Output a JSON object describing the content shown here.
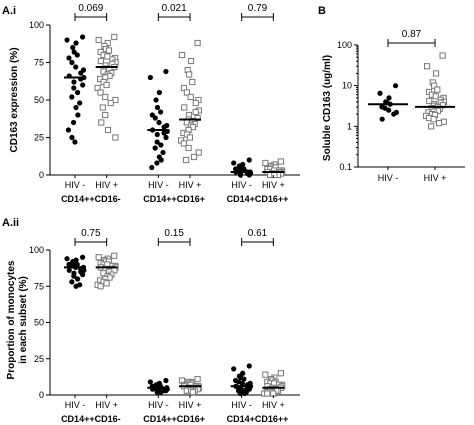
{
  "chart_data": [
    {
      "panel": "A.i",
      "type": "scatter",
      "ylabel": "CD163 expression (%)",
      "ylim": [
        0,
        100
      ],
      "yticks": [
        "0",
        "25",
        "50",
        "75",
        "100"
      ],
      "yticks_values": [
        0,
        25,
        50,
        75,
        100
      ],
      "groups": [
        {
          "name": "CD14++CD16-",
          "pvalue": "0.069",
          "categories": [
            {
              "label": "HIV -",
              "median": 65,
              "values": [
                92,
                90,
                88,
                85,
                82,
                80,
                78,
                75,
                72,
                70,
                68,
                66,
                65,
                64,
                62,
                60,
                58,
                55,
                52,
                48,
                45,
                40,
                35,
                30,
                25,
                22
              ]
            },
            {
              "label": "HIV +",
              "median": 72,
              "values": [
                92,
                90,
                88,
                86,
                84,
                83,
                82,
                80,
                79,
                78,
                77,
                76,
                75,
                74,
                73,
                72,
                71,
                70,
                69,
                68,
                67,
                66,
                65,
                64,
                62,
                60,
                58,
                55,
                52,
                50,
                48,
                45,
                40,
                35,
                30,
                25
              ]
            }
          ]
        },
        {
          "name": "CD14++CD16+",
          "pvalue": "0.021",
          "categories": [
            {
              "label": "HIV -",
              "median": 30,
              "values": [
                69,
                65,
                55,
                50,
                45,
                42,
                40,
                38,
                35,
                33,
                32,
                30,
                29,
                28,
                27,
                25,
                22,
                20,
                18,
                15,
                12,
                10,
                8,
                5
              ]
            },
            {
              "label": "HIV +",
              "median": 37,
              "values": [
                88,
                80,
                76,
                70,
                67,
                62,
                58,
                55,
                52,
                50,
                48,
                45,
                43,
                42,
                40,
                38,
                37,
                36,
                35,
                34,
                33,
                32,
                30,
                28,
                27,
                25,
                23,
                21,
                18,
                15,
                12,
                10
              ]
            }
          ]
        },
        {
          "name": "CD14+CD16++",
          "pvalue": "0.79",
          "categories": [
            {
              "label": "HIV -",
              "median": 2,
              "values": [
                10,
                8,
                7,
                6,
                5,
                4,
                4,
                3,
                3,
                2,
                2,
                2,
                1,
                1,
                1,
                0,
                0
              ]
            },
            {
              "label": "HIV +",
              "median": 2,
              "values": [
                9,
                8,
                7,
                6,
                5,
                5,
                4,
                4,
                3,
                3,
                3,
                2,
                2,
                2,
                1,
                1,
                1,
                1,
                0,
                0,
                0
              ]
            }
          ]
        }
      ]
    },
    {
      "panel": "B",
      "type": "scatter",
      "ylabel": "Soluble CD163 (ug/ml)",
      "scale": "log",
      "ylim": [
        0.1,
        100
      ],
      "yticks": [
        "0.1",
        "1",
        "10",
        "100"
      ],
      "yticks_values": [
        0.1,
        1,
        10,
        100
      ],
      "pvalue": "0.87",
      "categories": [
        {
          "label": "HIV -",
          "median": 3.5,
          "values": [
            10,
            6.5,
            5,
            4,
            3.8,
            3.5,
            3,
            2.8,
            2.5,
            2.2,
            2,
            1.5
          ]
        },
        {
          "label": "HIV +",
          "median": 3,
          "values": [
            55,
            30,
            20,
            12,
            10,
            8,
            7,
            6,
            5.5,
            5,
            4.5,
            4.2,
            4,
            3.8,
            3.5,
            3.3,
            3.2,
            3,
            2.8,
            2.7,
            2.5,
            2.4,
            2.3,
            2.2,
            2,
            1.9,
            1.8,
            1.6,
            1.5,
            1.3,
            1.2,
            1
          ]
        }
      ]
    },
    {
      "panel": "A.ii",
      "type": "scatter",
      "ylabel": "Proportion of monocytes in each subset (%)",
      "ylim": [
        0,
        100
      ],
      "yticks": [
        "0",
        "25",
        "50",
        "75",
        "100"
      ],
      "yticks_values": [
        0,
        25,
        50,
        75,
        100
      ],
      "groups": [
        {
          "name": "CD14++CD16-",
          "pvalue": "0.75",
          "categories": [
            {
              "label": "HIV -",
              "median": 88,
              "values": [
                95,
                94,
                93,
                92,
                91,
                90,
                90,
                89,
                88,
                88,
                87,
                86,
                86,
                85,
                84,
                83,
                82,
                80,
                78,
                76,
                75
              ]
            },
            {
              "label": "HIV +",
              "median": 88,
              "values": [
                96,
                95,
                94,
                93,
                92,
                92,
                91,
                90,
                90,
                89,
                89,
                88,
                88,
                87,
                87,
                86,
                86,
                85,
                84,
                83,
                82,
                81,
                80,
                79,
                78,
                77,
                76,
                75
              ]
            }
          ]
        },
        {
          "name": "CD14++CD16+",
          "pvalue": "0.15",
          "categories": [
            {
              "label": "HIV -",
              "median": 5,
              "values": [
                10,
                9,
                8,
                7,
                7,
                6,
                6,
                5,
                5,
                5,
                4,
                4,
                4,
                3,
                3,
                3,
                2,
                2
              ]
            },
            {
              "label": "HIV +",
              "median": 6,
              "values": [
                11,
                10,
                9,
                9,
                8,
                8,
                7,
                7,
                7,
                6,
                6,
                6,
                5,
                5,
                5,
                4,
                4,
                4,
                3,
                3,
                3,
                2
              ]
            }
          ]
        },
        {
          "name": "CD14+CD16++",
          "pvalue": "0.61",
          "categories": [
            {
              "label": "HIV -",
              "median": 6,
              "values": [
                20,
                18,
                15,
                13,
                12,
                11,
                10,
                9,
                8,
                8,
                7,
                6,
                6,
                5,
                5,
                4,
                4,
                3,
                3,
                2,
                2,
                1,
                1
              ]
            },
            {
              "label": "HIV +",
              "median": 5,
              "values": [
                15,
                14,
                12,
                11,
                10,
                9,
                9,
                8,
                8,
                7,
                7,
                6,
                6,
                5,
                5,
                5,
                4,
                4,
                4,
                3,
                3,
                3,
                2,
                2,
                2,
                1,
                1,
                1
              ]
            }
          ]
        }
      ]
    }
  ],
  "colors": {
    "hiv_neg_marker": "#000000",
    "hiv_pos_marker_stroke": "#777777",
    "hiv_pos_marker_fill": "#ffffff",
    "axis": "#000000"
  }
}
